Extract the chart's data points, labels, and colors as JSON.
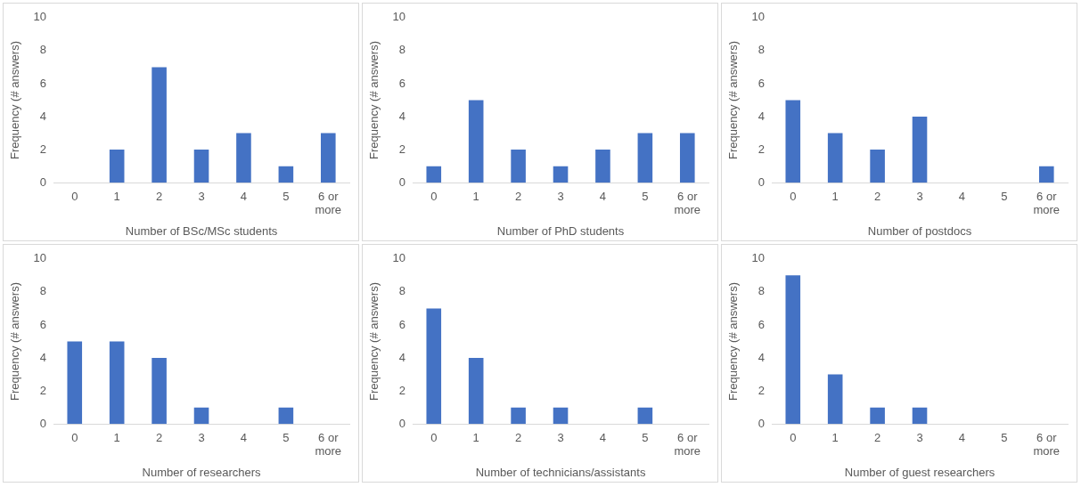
{
  "chart_data": [
    {
      "type": "bar",
      "xlabel": "Number of BSc/MSc students",
      "ylabel": "Frequency (# answers)",
      "categories": [
        "0",
        "1",
        "2",
        "3",
        "4",
        "5",
        "6 or more"
      ],
      "values": [
        0,
        2,
        7,
        2,
        3,
        1,
        3
      ],
      "color": "#4472c4",
      "ylim": [
        0,
        10
      ],
      "yticks": [
        0,
        2,
        4,
        6,
        8,
        10
      ],
      "grid": false,
      "legend": false
    },
    {
      "type": "bar",
      "xlabel": "Number of PhD students",
      "ylabel": "Frequency (# answers)",
      "categories": [
        "0",
        "1",
        "2",
        "3",
        "4",
        "5",
        "6 or more"
      ],
      "values": [
        1,
        5,
        2,
        1,
        2,
        3,
        3
      ],
      "color": "#4472c4",
      "ylim": [
        0,
        10
      ],
      "yticks": [
        0,
        2,
        4,
        6,
        8,
        10
      ],
      "grid": false,
      "legend": false
    },
    {
      "type": "bar",
      "xlabel": "Number of postdocs",
      "ylabel": "Frequency (# answers)",
      "categories": [
        "0",
        "1",
        "2",
        "3",
        "4",
        "5",
        "6 or more"
      ],
      "values": [
        5,
        3,
        2,
        4,
        0,
        0,
        1
      ],
      "color": "#4472c4",
      "ylim": [
        0,
        10
      ],
      "yticks": [
        0,
        2,
        4,
        6,
        8,
        10
      ],
      "grid": false,
      "legend": false
    },
    {
      "type": "bar",
      "xlabel": "Number of researchers",
      "ylabel": "Frequency (# answers)",
      "categories": [
        "0",
        "1",
        "2",
        "3",
        "4",
        "5",
        "6 or more"
      ],
      "values": [
        5,
        5,
        4,
        1,
        0,
        1,
        0
      ],
      "color": "#4472c4",
      "ylim": [
        0,
        10
      ],
      "yticks": [
        0,
        2,
        4,
        6,
        8,
        10
      ],
      "grid": false,
      "legend": false
    },
    {
      "type": "bar",
      "xlabel": "Number of technicians/assistants",
      "ylabel": "Frequency (# answers)",
      "categories": [
        "0",
        "1",
        "2",
        "3",
        "4",
        "5",
        "6 or more"
      ],
      "values": [
        7,
        4,
        1,
        1,
        0,
        1,
        0
      ],
      "color": "#4472c4",
      "ylim": [
        0,
        10
      ],
      "yticks": [
        0,
        2,
        4,
        6,
        8,
        10
      ],
      "grid": false,
      "legend": false
    },
    {
      "type": "bar",
      "xlabel": "Number of guest researchers",
      "ylabel": "Frequency (# answers)",
      "categories": [
        "0",
        "1",
        "2",
        "3",
        "4",
        "5",
        "6 or more"
      ],
      "values": [
        9,
        3,
        1,
        1,
        0,
        0,
        0
      ],
      "color": "#4472c4",
      "ylim": [
        0,
        10
      ],
      "yticks": [
        0,
        2,
        4,
        6,
        8,
        10
      ],
      "grid": false,
      "legend": false
    }
  ]
}
